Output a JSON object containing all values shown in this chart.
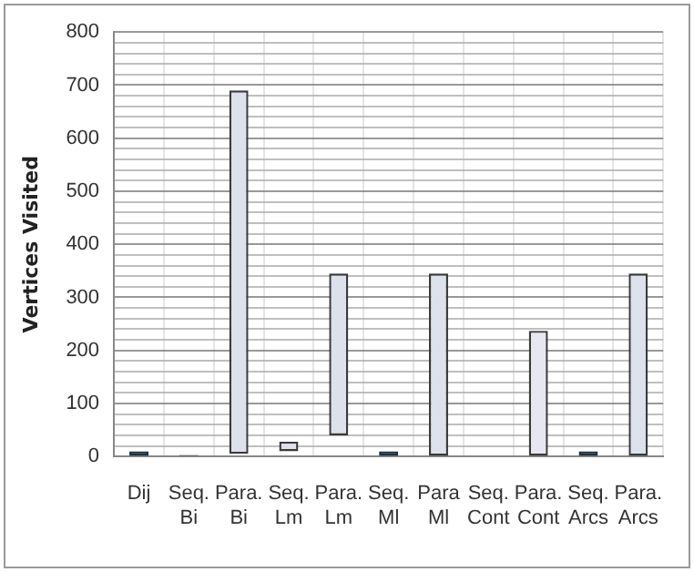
{
  "chart_data": {
    "type": "bar",
    "ylabel": "Vertices Visited",
    "categories": [
      "Dij",
      "Seq. Bi",
      "Para. Bi",
      "Seq. Lm",
      "Para. Lm",
      "Seq. Ml",
      "Para Ml",
      "Seq. Cont",
      "Para. Cont",
      "Seq. Arcs",
      "Para. Arcs"
    ],
    "base": [
      0,
      0,
      5,
      10,
      40,
      0,
      0,
      null,
      0,
      0,
      0
    ],
    "values": [
      10,
      3,
      685,
      18,
      305,
      10,
      345,
      null,
      237,
      10,
      345
    ],
    "colors": [
      "#1f3140",
      "#1f3140",
      "#dde1ec",
      "#dde1ec",
      "#dde1ec",
      "#1f3140",
      "#dde1ec",
      "#dde1ec",
      "#e6e7f0",
      "#1f3140",
      "#dde1ec"
    ],
    "ylim": [
      0,
      800
    ],
    "yticks": [
      0,
      {
        "value": 20,
        "label": null
      },
      {
        "value": 40,
        "label": null
      },
      {
        "value": 60,
        "label": null
      },
      {
        "value": 80,
        "label": null
      },
      100,
      {
        "value": 120,
        "label": null
      },
      {
        "value": 140,
        "label": null
      },
      {
        "value": 160,
        "label": null
      },
      {
        "value": 180,
        "label": null
      },
      200,
      {
        "value": 220,
        "label": null
      },
      {
        "value": 240,
        "label": null
      },
      {
        "value": 260,
        "label": null
      },
      {
        "value": 280,
        "label": null
      },
      300,
      {
        "value": 320,
        "label": null
      },
      {
        "value": 340,
        "label": null
      },
      {
        "value": 360,
        "label": null
      },
      {
        "value": 380,
        "label": null
      },
      400,
      {
        "value": 420,
        "label": null
      },
      {
        "value": 440,
        "label": null
      },
      {
        "value": 460,
        "label": null
      },
      {
        "value": 480,
        "label": null
      },
      500,
      {
        "value": 520,
        "label": null
      },
      {
        "value": 540,
        "label": null
      },
      {
        "value": 560,
        "label": null
      },
      {
        "value": 580,
        "label": null
      },
      600,
      {
        "value": 620,
        "label": null
      },
      {
        "value": 640,
        "label": null
      },
      {
        "value": 660,
        "label": null
      },
      {
        "value": 680,
        "label": null
      },
      700,
      {
        "value": 720,
        "label": null
      },
      {
        "value": 740,
        "label": null
      },
      {
        "value": 760,
        "label": null
      },
      {
        "value": 780,
        "label": null
      },
      800
    ],
    "grid": true,
    "legend": false
  }
}
